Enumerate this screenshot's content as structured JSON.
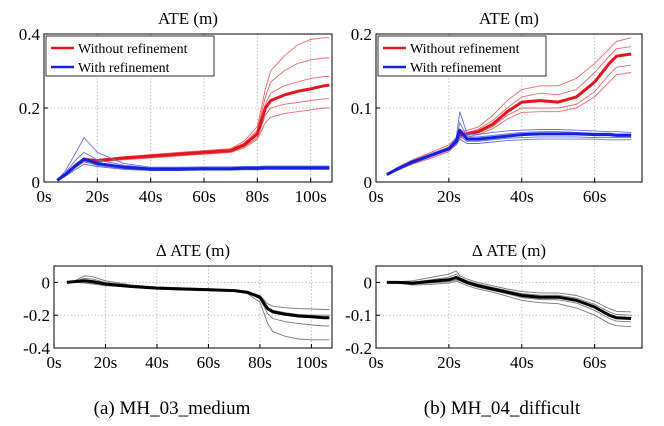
{
  "figure": {
    "captions": [
      "(a) MH_03_medium",
      "(b) MH_04_difficult"
    ]
  },
  "chart_data": [
    {
      "type": "line",
      "title": "ATE (m)",
      "x_ticks": [
        "0s",
        "20s",
        "40s",
        "60s",
        "80s",
        "100s"
      ],
      "x_tick_values": [
        0,
        20,
        40,
        60,
        80,
        100
      ],
      "y_ticks": [
        "0",
        "0.2",
        "0.4"
      ],
      "y_tick_values": [
        0,
        0.2,
        0.4
      ],
      "xlim": [
        0,
        108
      ],
      "ylim": [
        0,
        0.4
      ],
      "grid": true,
      "legend": {
        "placement": "top-left",
        "entries": [
          {
            "name": "Without refinement",
            "color": "#e8141c"
          },
          {
            "name": "With refinement",
            "color": "#1420e0"
          }
        ]
      },
      "series": [
        {
          "name": "Without refinement",
          "color": "#e8141c",
          "x": [
            5,
            8,
            12,
            15,
            20,
            30,
            40,
            50,
            60,
            70,
            75,
            80,
            83,
            85,
            90,
            95,
            100,
            105,
            107
          ],
          "mean": [
            0.005,
            0.02,
            0.045,
            0.06,
            0.058,
            0.065,
            0.07,
            0.075,
            0.08,
            0.085,
            0.1,
            0.13,
            0.2,
            0.22,
            0.235,
            0.245,
            0.252,
            0.26,
            0.262
          ],
          "runs": [
            [
              0.005,
              0.022,
              0.05,
              0.065,
              0.06,
              0.068,
              0.074,
              0.08,
              0.085,
              0.09,
              0.11,
              0.15,
              0.25,
              0.3,
              0.34,
              0.37,
              0.385,
              0.39,
              0.39
            ],
            [
              0.005,
              0.02,
              0.048,
              0.062,
              0.06,
              0.066,
              0.072,
              0.078,
              0.083,
              0.088,
              0.105,
              0.14,
              0.23,
              0.27,
              0.3,
              0.32,
              0.33,
              0.335,
              0.335
            ],
            [
              0.005,
              0.018,
              0.042,
              0.058,
              0.056,
              0.062,
              0.068,
              0.072,
              0.077,
              0.082,
              0.095,
              0.12,
              0.18,
              0.2,
              0.21,
              0.215,
              0.22,
              0.225,
              0.225
            ],
            [
              0.005,
              0.016,
              0.04,
              0.055,
              0.054,
              0.06,
              0.065,
              0.07,
              0.075,
              0.08,
              0.092,
              0.115,
              0.16,
              0.175,
              0.185,
              0.19,
              0.195,
              0.2,
              0.2
            ],
            [
              0.005,
              0.021,
              0.046,
              0.06,
              0.059,
              0.066,
              0.071,
              0.076,
              0.081,
              0.087,
              0.102,
              0.135,
              0.21,
              0.24,
              0.26,
              0.27,
              0.28,
              0.285,
              0.285
            ]
          ]
        },
        {
          "name": "With refinement",
          "color": "#1420e0",
          "x": [
            5,
            8,
            12,
            15,
            20,
            30,
            40,
            50,
            60,
            70,
            75,
            80,
            83,
            85,
            90,
            95,
            100,
            105,
            107
          ],
          "mean": [
            0.005,
            0.02,
            0.045,
            0.062,
            0.05,
            0.04,
            0.035,
            0.035,
            0.036,
            0.036,
            0.037,
            0.037,
            0.038,
            0.038,
            0.038,
            0.038,
            0.038,
            0.038,
            0.038
          ],
          "runs": [
            [
              0.005,
              0.03,
              0.08,
              0.12,
              0.08,
              0.05,
              0.04,
              0.04,
              0.041,
              0.041,
              0.042,
              0.042,
              0.043,
              0.043,
              0.043,
              0.043,
              0.043,
              0.043,
              0.043
            ],
            [
              0.005,
              0.025,
              0.06,
              0.08,
              0.06,
              0.045,
              0.038,
              0.038,
              0.039,
              0.039,
              0.04,
              0.04,
              0.041,
              0.041,
              0.041,
              0.041,
              0.041,
              0.041,
              0.041
            ],
            [
              0.005,
              0.018,
              0.04,
              0.055,
              0.045,
              0.036,
              0.032,
              0.032,
              0.033,
              0.033,
              0.034,
              0.034,
              0.035,
              0.035,
              0.035,
              0.035,
              0.035,
              0.035,
              0.035
            ],
            [
              0.005,
              0.015,
              0.035,
              0.048,
              0.042,
              0.034,
              0.031,
              0.031,
              0.032,
              0.032,
              0.033,
              0.033,
              0.034,
              0.034,
              0.034,
              0.034,
              0.034,
              0.034,
              0.034
            ]
          ]
        }
      ]
    },
    {
      "type": "line",
      "title": "ATE (m)",
      "x_ticks": [
        "0s",
        "20s",
        "40s",
        "60s"
      ],
      "x_tick_values": [
        0,
        20,
        40,
        60
      ],
      "y_ticks": [
        "0",
        "0.1",
        "0.2"
      ],
      "y_tick_values": [
        0,
        0.1,
        0.2
      ],
      "xlim": [
        0,
        73
      ],
      "ylim": [
        0,
        0.2
      ],
      "grid": true,
      "legend": {
        "placement": "top-left",
        "entries": [
          {
            "name": "Without refinement",
            "color": "#e8141c"
          },
          {
            "name": "With refinement",
            "color": "#1420e0"
          }
        ]
      },
      "series": [
        {
          "name": "Without refinement",
          "color": "#e8141c",
          "x": [
            3,
            6,
            10,
            15,
            20,
            22,
            23,
            25,
            28,
            32,
            36,
            40,
            45,
            50,
            55,
            60,
            64,
            66,
            70
          ],
          "mean": [
            0.01,
            0.018,
            0.027,
            0.036,
            0.045,
            0.055,
            0.063,
            0.065,
            0.068,
            0.078,
            0.095,
            0.108,
            0.11,
            0.108,
            0.115,
            0.135,
            0.16,
            0.17,
            0.173
          ],
          "runs": [
            [
              0.01,
              0.02,
              0.03,
              0.04,
              0.05,
              0.06,
              0.068,
              0.07,
              0.074,
              0.09,
              0.11,
              0.125,
              0.13,
              0.13,
              0.14,
              0.16,
              0.18,
              0.19,
              0.195
            ],
            [
              0.01,
              0.019,
              0.029,
              0.038,
              0.047,
              0.057,
              0.065,
              0.067,
              0.071,
              0.083,
              0.1,
              0.115,
              0.12,
              0.118,
              0.125,
              0.148,
              0.17,
              0.18,
              0.183
            ],
            [
              0.01,
              0.017,
              0.025,
              0.034,
              0.043,
              0.053,
              0.061,
              0.063,
              0.066,
              0.075,
              0.09,
              0.1,
              0.1,
              0.1,
              0.105,
              0.122,
              0.145,
              0.155,
              0.158
            ],
            [
              0.01,
              0.016,
              0.024,
              0.032,
              0.041,
              0.051,
              0.059,
              0.061,
              0.064,
              0.072,
              0.085,
              0.094,
              0.095,
              0.095,
              0.1,
              0.115,
              0.135,
              0.145,
              0.148
            ]
          ]
        },
        {
          "name": "With refinement",
          "color": "#1420e0",
          "x": [
            3,
            6,
            10,
            15,
            20,
            22,
            23,
            25,
            28,
            32,
            36,
            40,
            45,
            50,
            55,
            60,
            64,
            66,
            70
          ],
          "mean": [
            0.01,
            0.018,
            0.027,
            0.036,
            0.045,
            0.055,
            0.07,
            0.058,
            0.058,
            0.06,
            0.062,
            0.064,
            0.065,
            0.065,
            0.065,
            0.064,
            0.064,
            0.063,
            0.063
          ],
          "runs": [
            [
              0.01,
              0.019,
              0.029,
              0.038,
              0.047,
              0.06,
              0.095,
              0.065,
              0.064,
              0.067,
              0.069,
              0.07,
              0.071,
              0.071,
              0.07,
              0.069,
              0.068,
              0.068,
              0.067
            ],
            [
              0.01,
              0.018,
              0.028,
              0.037,
              0.046,
              0.058,
              0.08,
              0.061,
              0.061,
              0.063,
              0.065,
              0.067,
              0.068,
              0.068,
              0.067,
              0.066,
              0.066,
              0.065,
              0.065
            ],
            [
              0.01,
              0.017,
              0.026,
              0.035,
              0.044,
              0.052,
              0.062,
              0.055,
              0.055,
              0.057,
              0.059,
              0.06,
              0.061,
              0.061,
              0.061,
              0.06,
              0.06,
              0.06,
              0.06
            ],
            [
              0.01,
              0.016,
              0.025,
              0.034,
              0.043,
              0.05,
              0.058,
              0.052,
              0.052,
              0.054,
              0.056,
              0.057,
              0.058,
              0.058,
              0.058,
              0.058,
              0.057,
              0.057,
              0.057
            ]
          ]
        }
      ]
    },
    {
      "type": "line",
      "title": "Δ ATE (m)",
      "x_ticks": [
        "0s",
        "20s",
        "40s",
        "60s",
        "80s",
        "100s"
      ],
      "x_tick_values": [
        0,
        20,
        40,
        60,
        80,
        100
      ],
      "y_ticks": [
        "0",
        "-0.2",
        "-0.4"
      ],
      "y_tick_values": [
        0,
        -0.2,
        -0.4
      ],
      "xlim": [
        0,
        108
      ],
      "ylim": [
        -0.4,
        0.1
      ],
      "grid": true,
      "series": [
        {
          "name": "",
          "color": "#000000",
          "x": [
            5,
            8,
            12,
            15,
            20,
            30,
            40,
            50,
            60,
            70,
            75,
            80,
            83,
            85,
            90,
            95,
            100,
            105,
            107
          ],
          "mean": [
            0.0,
            0.005,
            0.01,
            0.005,
            -0.01,
            -0.025,
            -0.035,
            -0.04,
            -0.045,
            -0.05,
            -0.06,
            -0.09,
            -0.16,
            -0.18,
            -0.195,
            -0.205,
            -0.21,
            -0.215,
            -0.215
          ],
          "runs": [
            [
              0.0,
              0.01,
              0.04,
              0.035,
              0.01,
              -0.015,
              -0.028,
              -0.033,
              -0.038,
              -0.045,
              -0.055,
              -0.08,
              -0.13,
              -0.145,
              -0.155,
              -0.16,
              -0.162,
              -0.165,
              -0.165
            ],
            [
              0.0,
              0.008,
              0.025,
              0.02,
              0.0,
              -0.02,
              -0.032,
              -0.037,
              -0.042,
              -0.048,
              -0.058,
              -0.085,
              -0.15,
              -0.17,
              -0.185,
              -0.195,
              -0.2,
              -0.2,
              -0.2
            ],
            [
              0.0,
              0.003,
              0.0,
              -0.005,
              -0.015,
              -0.028,
              -0.038,
              -0.043,
              -0.048,
              -0.053,
              -0.063,
              -0.1,
              -0.19,
              -0.22,
              -0.24,
              -0.25,
              -0.26,
              -0.265,
              -0.265
            ],
            [
              0.0,
              0.001,
              -0.005,
              -0.01,
              -0.02,
              -0.03,
              -0.04,
              -0.045,
              -0.05,
              -0.055,
              -0.068,
              -0.12,
              -0.25,
              -0.3,
              -0.33,
              -0.345,
              -0.35,
              -0.35,
              -0.35
            ]
          ]
        }
      ]
    },
    {
      "type": "line",
      "title": "Δ ATE (m)",
      "x_ticks": [
        "0s",
        "20s",
        "40s",
        "60s"
      ],
      "x_tick_values": [
        0,
        20,
        40,
        60
      ],
      "y_ticks": [
        "0",
        "-0.1",
        "-0.2"
      ],
      "y_tick_values": [
        0,
        -0.1,
        -0.2
      ],
      "xlim": [
        0,
        73
      ],
      "ylim": [
        -0.2,
        0.05
      ],
      "grid": true,
      "series": [
        {
          "name": "",
          "color": "#000000",
          "x": [
            3,
            6,
            10,
            15,
            20,
            22,
            23,
            25,
            28,
            32,
            36,
            40,
            45,
            50,
            55,
            60,
            64,
            66,
            70
          ],
          "mean": [
            0.0,
            0.0,
            -0.002,
            0.003,
            0.008,
            0.015,
            0.01,
            0.0,
            -0.01,
            -0.02,
            -0.03,
            -0.04,
            -0.045,
            -0.045,
            -0.055,
            -0.075,
            -0.1,
            -0.108,
            -0.11
          ],
          "runs": [
            [
              0.0,
              0.002,
              0.005,
              0.015,
              0.025,
              0.035,
              0.02,
              0.01,
              0.0,
              -0.01,
              -0.02,
              -0.028,
              -0.032,
              -0.032,
              -0.04,
              -0.058,
              -0.08,
              -0.088,
              -0.09
            ],
            [
              0.0,
              0.001,
              0.0,
              0.008,
              0.016,
              0.025,
              0.015,
              0.005,
              -0.005,
              -0.015,
              -0.025,
              -0.034,
              -0.039,
              -0.039,
              -0.048,
              -0.067,
              -0.09,
              -0.098,
              -0.1
            ],
            [
              0.0,
              -0.001,
              -0.005,
              -0.002,
              0.002,
              0.008,
              0.005,
              -0.005,
              -0.015,
              -0.025,
              -0.035,
              -0.046,
              -0.052,
              -0.053,
              -0.063,
              -0.085,
              -0.11,
              -0.118,
              -0.12
            ],
            [
              0.0,
              -0.002,
              -0.008,
              -0.006,
              -0.002,
              0.004,
              0.0,
              -0.01,
              -0.02,
              -0.03,
              -0.042,
              -0.055,
              -0.062,
              -0.065,
              -0.078,
              -0.1,
              -0.125,
              -0.132,
              -0.135
            ]
          ]
        }
      ]
    }
  ]
}
